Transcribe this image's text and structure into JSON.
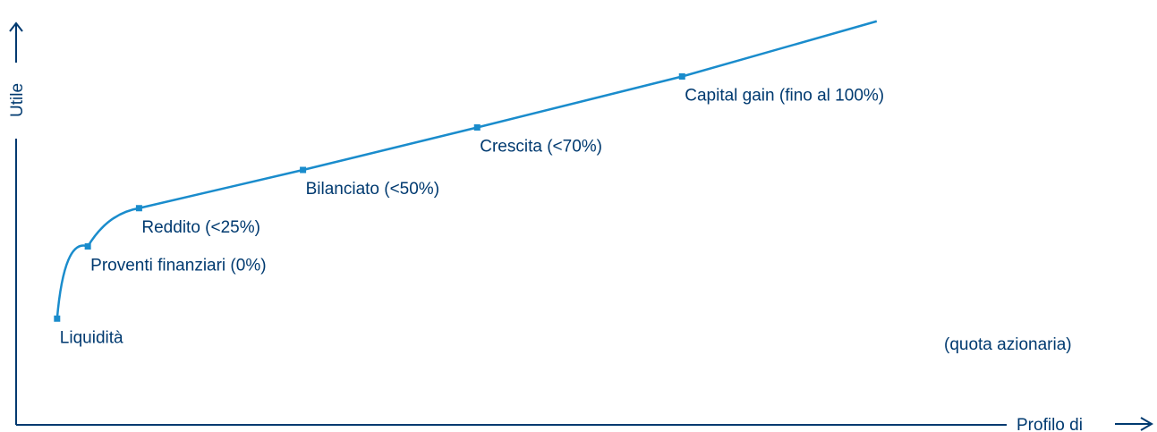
{
  "colors": {
    "axis": "#003a70",
    "curve": "#1a8ccc",
    "text": "#003a70"
  },
  "axes": {
    "y_label": "Utile",
    "x_label": "Profilo di",
    "x_note": "(quota azionaria)"
  },
  "chart_data": {
    "type": "line",
    "title": "",
    "ylabel": "Utile",
    "xlabel": "Profilo di",
    "x_annotation": "(quota azionaria)",
    "xlim": [
      0,
      100
    ],
    "ylim": [
      0,
      100
    ],
    "grid": false,
    "legend": "none",
    "points": [
      {
        "label": "Liquidità",
        "x": 4,
        "y": 25
      },
      {
        "label": "Proventi finanziari (0%)",
        "x": 7,
        "y": 42
      },
      {
        "label": "Reddito (<25%)",
        "x": 12,
        "y": 51
      },
      {
        "label": "Bilanciato (<50%)",
        "x": 28,
        "y": 60
      },
      {
        "label": "Crescita (<70%)",
        "x": 45,
        "y": 70
      },
      {
        "label": "Capital gain (fino al 100%)",
        "x": 65,
        "y": 82
      }
    ],
    "line_end": {
      "x": 84,
      "y": 95
    }
  }
}
